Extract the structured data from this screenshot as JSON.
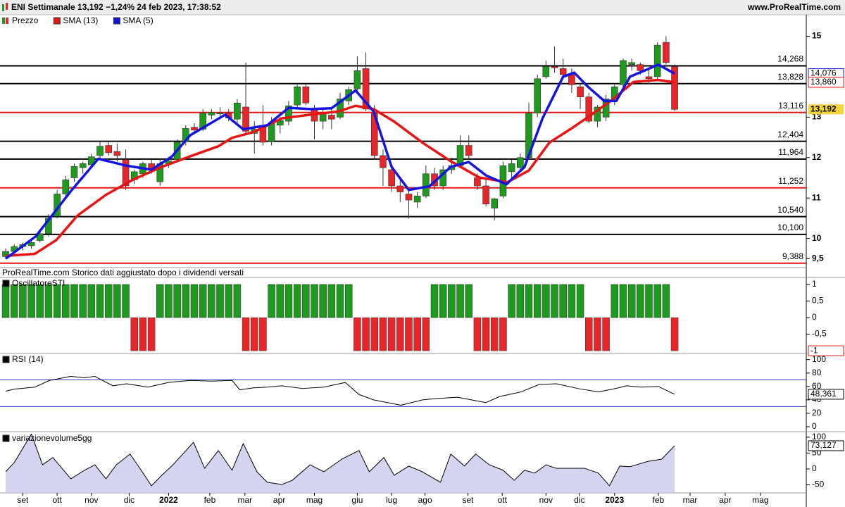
{
  "chart_data": [
    {
      "type": "candlestick",
      "title": "ENI Settimanale 13,192 −1,24% 24 feb 2023, 17:38:52",
      "source": "www.ProRealTime.com",
      "note": "ProRealTime.com  Storico dati aggiustato dopo i dividendi versati",
      "candles_name": "Prezzo",
      "up_color": "#1e9a1e",
      "down_color": "#e8262a",
      "candles": [
        [
          9.55,
          9.75,
          9.5,
          9.68
        ],
        [
          9.68,
          9.85,
          9.62,
          9.8
        ],
        [
          9.8,
          9.9,
          9.7,
          9.85
        ],
        [
          9.82,
          10.0,
          9.75,
          9.9
        ],
        [
          9.95,
          10.2,
          9.9,
          10.12
        ],
        [
          10.12,
          10.6,
          10.05,
          10.5
        ],
        [
          10.55,
          11.2,
          10.5,
          11.1
        ],
        [
          11.1,
          11.55,
          11.0,
          11.45
        ],
        [
          11.5,
          11.85,
          11.4,
          11.78
        ],
        [
          11.75,
          11.9,
          11.6,
          11.85
        ],
        [
          11.82,
          12.1,
          11.75,
          12.02
        ],
        [
          12.05,
          12.4,
          11.95,
          12.28
        ],
        [
          12.3,
          12.4,
          12.05,
          12.12
        ],
        [
          12.15,
          12.35,
          11.9,
          12.05
        ],
        [
          11.95,
          12.2,
          11.2,
          11.3
        ],
        [
          11.45,
          11.7,
          11.35,
          11.65
        ],
        [
          11.6,
          11.9,
          11.5,
          11.85
        ],
        [
          11.85,
          11.95,
          11.6,
          11.7
        ],
        [
          11.4,
          11.95,
          11.3,
          11.85
        ],
        [
          11.85,
          12.0,
          11.75,
          11.92
        ],
        [
          11.95,
          12.45,
          11.9,
          12.38
        ],
        [
          12.4,
          12.8,
          12.3,
          12.72
        ],
        [
          12.75,
          12.85,
          12.6,
          12.68
        ],
        [
          12.7,
          13.2,
          12.65,
          13.1
        ],
        [
          13.05,
          13.2,
          12.95,
          13.12
        ],
        [
          13.08,
          13.25,
          12.95,
          13.1
        ],
        [
          13.1,
          13.2,
          12.9,
          12.98
        ],
        [
          12.95,
          13.45,
          12.8,
          13.35
        ],
        [
          13.25,
          14.35,
          12.55,
          12.65
        ],
        [
          12.6,
          12.9,
          12.1,
          12.7
        ],
        [
          12.75,
          13.3,
          12.3,
          12.38
        ],
        [
          12.4,
          13.0,
          12.3,
          12.85
        ],
        [
          12.8,
          13.0,
          12.6,
          12.92
        ],
        [
          12.9,
          13.4,
          12.8,
          13.28
        ],
        [
          13.3,
          13.8,
          13.2,
          13.75
        ],
        [
          13.75,
          13.85,
          13.3,
          13.35
        ],
        [
          13.2,
          13.3,
          12.45,
          12.9
        ],
        [
          12.9,
          13.2,
          12.7,
          13.08
        ],
        [
          13.05,
          13.25,
          12.7,
          12.95
        ],
        [
          13.0,
          13.6,
          12.95,
          13.45
        ],
        [
          13.4,
          13.75,
          13.3,
          13.68
        ],
        [
          13.7,
          14.5,
          13.6,
          14.15
        ],
        [
          14.2,
          14.6,
          13.15,
          13.2
        ],
        [
          13.1,
          13.3,
          11.95,
          12.05
        ],
        [
          12.05,
          12.2,
          11.3,
          11.75
        ],
        [
          11.7,
          11.8,
          11.15,
          11.3
        ],
        [
          11.3,
          11.45,
          10.9,
          11.15
        ],
        [
          11.1,
          11.2,
          10.5,
          10.95
        ],
        [
          10.9,
          11.15,
          10.75,
          11.05
        ],
        [
          11.05,
          11.8,
          11.0,
          11.6
        ],
        [
          11.6,
          11.75,
          11.2,
          11.3
        ],
        [
          11.3,
          11.8,
          11.2,
          11.7
        ],
        [
          11.7,
          12.0,
          11.6,
          11.8
        ],
        [
          11.8,
          12.55,
          11.75,
          12.3
        ],
        [
          12.3,
          12.55,
          11.95,
          12.05
        ],
        [
          11.5,
          11.6,
          11.2,
          11.3
        ],
        [
          11.3,
          11.45,
          10.8,
          10.85
        ],
        [
          10.75,
          11.0,
          10.45,
          10.98
        ],
        [
          11.05,
          11.9,
          11.0,
          11.8
        ],
        [
          11.65,
          11.95,
          11.5,
          11.85
        ],
        [
          11.75,
          12.1,
          11.65,
          12.0
        ],
        [
          12.0,
          13.35,
          11.95,
          13.1
        ],
        [
          13.1,
          14.05,
          13.0,
          13.95
        ],
        [
          14.0,
          14.4,
          13.95,
          14.25
        ],
        [
          14.25,
          14.75,
          14.1,
          14.22
        ],
        [
          14.2,
          14.45,
          13.95,
          14.05
        ],
        [
          14.05,
          14.2,
          13.6,
          13.8
        ],
        [
          13.75,
          13.85,
          13.2,
          13.5
        ],
        [
          13.5,
          13.6,
          12.85,
          12.9
        ],
        [
          12.9,
          13.3,
          12.75,
          13.25
        ],
        [
          13.0,
          13.55,
          12.9,
          13.45
        ],
        [
          13.45,
          13.8,
          13.3,
          13.75
        ],
        [
          13.8,
          14.45,
          13.7,
          14.4
        ],
        [
          14.3,
          14.45,
          14.15,
          14.35
        ],
        [
          14.3,
          14.35,
          14.05,
          14.15
        ],
        [
          14.0,
          14.2,
          13.85,
          13.95
        ],
        [
          14.0,
          14.85,
          13.95,
          14.78
        ],
        [
          14.85,
          15.0,
          14.3,
          14.35
        ],
        [
          14.25,
          14.3,
          13.15,
          13.192
        ]
      ],
      "series": [
        {
          "name": "SMA (13)",
          "color": "#e81414",
          "x": [
            0,
            3.4,
            5.9,
            8.4,
            11.7,
            14.9,
            18.2,
            21.5,
            24.8,
            26.4,
            28.9,
            32.2,
            35.5,
            38.8,
            40.8,
            42.9,
            45.3,
            48.6,
            51.9,
            55.2,
            58.5,
            61,
            63.4,
            65.9,
            68.3,
            70.8,
            73.2,
            76.1,
            78
          ],
          "values": [
            9.57,
            9.62,
            9.96,
            10.57,
            11.08,
            11.46,
            11.77,
            12.03,
            12.28,
            12.49,
            12.63,
            12.97,
            13.06,
            13.14,
            13.28,
            13.2,
            12.89,
            12.37,
            11.91,
            11.51,
            11.39,
            11.68,
            12.37,
            12.71,
            13.06,
            13.44,
            13.87,
            13.92,
            13.86
          ]
        },
        {
          "name": "SMA (5)",
          "color": "#1414e0",
          "x": [
            0,
            3.5,
            7.6,
            10.8,
            14.1,
            17,
            19.4,
            21.5,
            25.6,
            27.7,
            30.5,
            33,
            35.5,
            38,
            40.8,
            42.9,
            45,
            47,
            49.4,
            51.9,
            54,
            56,
            58.4,
            60.5,
            62.6,
            65,
            66.3,
            67.9,
            69.8,
            71.2,
            72.8,
            74.7,
            76.1,
            78
          ],
          "values": [
            9.5,
            10.05,
            11.17,
            11.97,
            11.8,
            11.7,
            12.03,
            12.55,
            13.06,
            12.7,
            12.8,
            13.23,
            13.2,
            13.22,
            13.66,
            13.14,
            11.77,
            11.2,
            11.29,
            11.77,
            11.89,
            11.56,
            11.34,
            11.77,
            12.97,
            14.0,
            14.1,
            13.75,
            13.4,
            13.4,
            14.0,
            14.17,
            14.3,
            14.076
          ]
        }
      ],
      "levels": [
        {
          "value": 14.268,
          "label": "14,268",
          "color": "#000000"
        },
        {
          "value": 13.828,
          "label": "13,828",
          "color": "#000000"
        },
        {
          "value": 13.116,
          "label": "13,116",
          "color": "#e81414"
        },
        {
          "value": 12.404,
          "label": "12,404",
          "color": "#000000"
        },
        {
          "value": 11.964,
          "label": "11,964",
          "color": "#000000"
        },
        {
          "value": 11.252,
          "label": "11,252",
          "color": "#e81414"
        },
        {
          "value": 10.54,
          "label": "10,540",
          "color": "#000000"
        },
        {
          "value": 10.1,
          "label": "10,100",
          "color": "#000000"
        },
        {
          "value": 9.388,
          "label": "9,388",
          "color": "#e81414"
        }
      ],
      "last_labels": [
        {
          "value": 14.076,
          "label": "14,076",
          "color": "#1414e0"
        },
        {
          "value": 13.86,
          "label": "13,860",
          "color": "#e81414"
        },
        {
          "value": 13.192,
          "label": "13,192",
          "color": "#000000",
          "background": "#f5d33a"
        }
      ],
      "xlim": [
        -0.66,
        93.35
      ],
      "ylim": [
        9.28,
        15.2
      ],
      "yticks": [
        15,
        13,
        12,
        11,
        10,
        {
          "value": 9.5,
          "label": "9,5"
        }
      ]
    },
    {
      "type": "bar",
      "title": "OscillatoreSTI",
      "up_color": "#1e9a1e",
      "down_color": "#e8262a",
      "values": [
        1,
        1,
        1,
        1,
        1,
        1,
        1,
        1,
        1,
        1,
        1,
        1,
        1,
        1,
        1,
        -1,
        -1,
        -1,
        1,
        1,
        1,
        1,
        1,
        1,
        1,
        1,
        1,
        1,
        -1,
        -1,
        -1,
        1,
        1,
        1,
        1,
        1,
        1,
        1,
        1,
        1,
        1,
        -1,
        -1,
        -1,
        -1,
        -1,
        -1,
        -1,
        -1,
        -1,
        1,
        1,
        1,
        1,
        1,
        -1,
        -1,
        -1,
        -1,
        1,
        1,
        1,
        1,
        1,
        1,
        1,
        1,
        1,
        -1,
        -1,
        -1,
        1,
        1,
        1,
        1,
        1,
        1,
        1,
        -1
      ],
      "last_label": {
        "value": -1,
        "label": "-1",
        "color": "#e81414"
      },
      "xlim": [
        -0.66,
        93.35
      ],
      "ylim": [
        -1.04,
        1.19
      ],
      "yticks": [
        1,
        {
          "value": 0.5,
          "label": "0,5"
        },
        0,
        {
          "value": -0.5,
          "label": "-0,5"
        }
      ]
    },
    {
      "type": "line",
      "title": "RSI (14)",
      "color": "#000000",
      "band_color": "#3333cc",
      "bands": [
        70,
        30
      ],
      "x": [
        0,
        1,
        3.4,
        5.1,
        7.6,
        9.2,
        10.4,
        12.5,
        14.1,
        16.6,
        19,
        21.5,
        24,
        26.4,
        27.3,
        28.9,
        30.5,
        32.2,
        34.6,
        37.1,
        39.6,
        41.2,
        42.9,
        46.1,
        48.6,
        50.2,
        52.7,
        56,
        57.6,
        60.1,
        62.2,
        64.2,
        66.7,
        69.1,
        70.8,
        72.4,
        74.1,
        76.1,
        78
      ],
      "values": [
        53,
        56,
        59,
        69,
        75,
        73,
        75,
        61,
        64,
        59,
        66,
        69,
        68,
        69,
        55,
        58,
        59,
        61,
        57,
        59,
        66,
        48,
        40,
        32,
        40,
        42,
        44,
        36,
        45,
        52,
        63,
        64,
        57,
        52,
        56,
        61,
        59,
        60,
        48.361
      ],
      "last_label": {
        "value": 48.361,
        "label": "48,361",
        "color": "#000000"
      },
      "xlim": [
        -0.66,
        93.35
      ],
      "ylim": [
        -6.3,
        106
      ],
      "yticks": [
        100,
        80,
        60,
        40,
        20,
        0
      ]
    },
    {
      "type": "area",
      "title": "variazionevolume5gg",
      "color": "#000000",
      "fill": "#c9c9ec",
      "x": [
        0,
        1,
        3,
        4.3,
        5.5,
        7.6,
        9.2,
        10.4,
        11.7,
        12.9,
        14.5,
        15.8,
        17,
        18.2,
        19.5,
        21.9,
        23.2,
        24.8,
        26.4,
        27.7,
        29.3,
        30.5,
        32.2,
        33.4,
        35.5,
        37.1,
        39.2,
        41.2,
        42.4,
        44.1,
        45.3,
        47,
        48.6,
        50.7,
        51.9,
        53.5,
        54.8,
        56.4,
        58,
        59.3,
        60.5,
        61.7,
        63,
        64.2,
        65.8,
        67.5,
        69.1,
        70.4,
        71.6,
        72.8,
        74.9,
        76.5,
        78
      ],
      "values": [
        -9,
        20,
        110,
        13,
        36,
        -31,
        -4,
        13,
        -31,
        13,
        47,
        -4,
        -53,
        -20,
        13,
        84,
        2,
        58,
        -4,
        80,
        -9,
        -42,
        -49,
        -36,
        13,
        -9,
        31,
        58,
        -9,
        36,
        -20,
        9,
        -9,
        -42,
        47,
        9,
        47,
        13,
        -4,
        -36,
        -4,
        -13,
        13,
        2,
        2,
        2,
        -13,
        -53,
        9,
        7,
        24,
        31,
        73.127
      ],
      "last_label": {
        "value": 73.127,
        "label": "73,127",
        "color": "#000000"
      },
      "xlim": [
        -0.66,
        93.35
      ],
      "ylim": [
        -75.5,
        113
      ],
      "yticks": [
        100,
        50,
        0,
        -50
      ],
      "xticks": [
        {
          "value": 2,
          "label": "set"
        },
        {
          "value": 6,
          "label": "ott"
        },
        {
          "value": 10,
          "label": "nov"
        },
        {
          "value": 14.4,
          "label": "dic"
        },
        {
          "value": 19,
          "label": "2022"
        },
        {
          "value": 23.8,
          "label": "feb"
        },
        {
          "value": 27.9,
          "label": "mar"
        },
        {
          "value": 31.9,
          "label": "apr"
        },
        {
          "value": 36,
          "label": "mag"
        },
        {
          "value": 41,
          "label": "giu"
        },
        {
          "value": 45,
          "label": "lug"
        },
        {
          "value": 48.9,
          "label": "ago"
        },
        {
          "value": 53.9,
          "label": "set"
        },
        {
          "value": 57.9,
          "label": "ott"
        },
        {
          "value": 63,
          "label": "nov"
        },
        {
          "value": 66.9,
          "label": "dic"
        },
        {
          "value": 71,
          "label": "2023"
        },
        {
          "value": 76.1,
          "label": "feb"
        },
        {
          "value": 79.8,
          "label": "mar"
        },
        {
          "value": 83.9,
          "label": "apr"
        },
        {
          "value": 88,
          "label": "mag"
        }
      ]
    }
  ]
}
